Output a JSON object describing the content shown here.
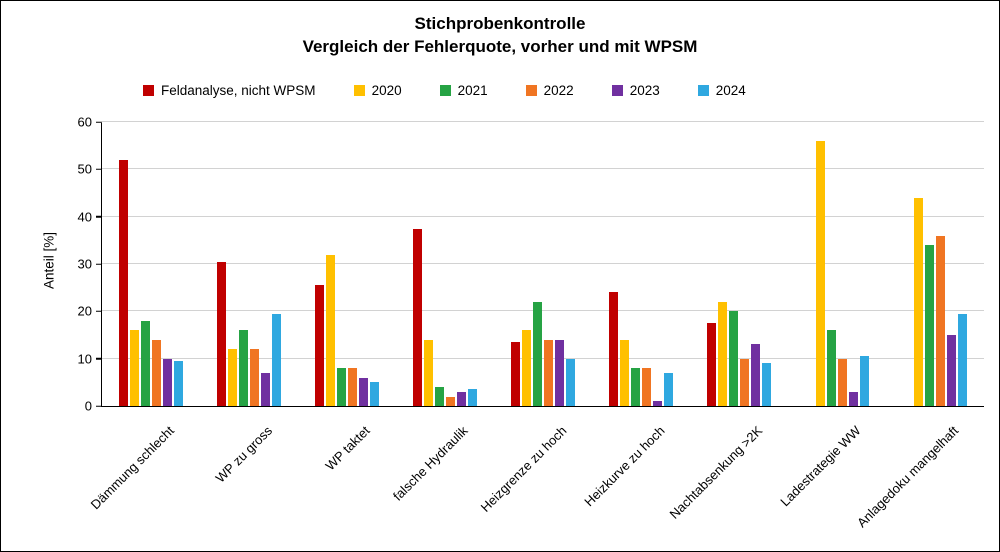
{
  "chart_data": {
    "type": "bar",
    "title": "Stichprobenkontrolle",
    "subtitle": "Vergleich der Fehlerquote, vorher und mit WPSM",
    "ylabel": "Anteil [%]",
    "xlabel": "",
    "ylim": [
      0,
      60
    ],
    "ytick_step": 10,
    "grid": "horizontal",
    "legend_position": "top",
    "background": "#ffffff",
    "gridline_color": "#D2D2D2",
    "categories": [
      "Dämmung schlecht",
      "WP zu gross",
      "WP taktet",
      "falsche Hydraulik",
      "Heizgrenze zu hoch",
      "Heizkurve zu hoch",
      "Nachtabsenkung >2K",
      "Ladestrategie WW",
      "Anlagedoku mangelhaft"
    ],
    "series": [
      {
        "name": "Feldanalyse, nicht WPSM",
        "color": "#C00000",
        "values": [
          52,
          30.5,
          25.5,
          37.5,
          13.5,
          24,
          17.5,
          0,
          0
        ]
      },
      {
        "name": "2020",
        "color": "#FFC000",
        "values": [
          16,
          12,
          32,
          14,
          16,
          14,
          22,
          56,
          44
        ]
      },
      {
        "name": "2021",
        "color": "#26A344",
        "values": [
          18,
          16,
          8,
          4,
          22,
          8,
          20,
          16,
          34
        ]
      },
      {
        "name": "2022",
        "color": "#F07522",
        "values": [
          14,
          12,
          8,
          2,
          14,
          8,
          10,
          10,
          36
        ]
      },
      {
        "name": "2023",
        "color": "#7030A0",
        "values": [
          10,
          7,
          6,
          3,
          14,
          1,
          13,
          3,
          15
        ]
      },
      {
        "name": "2024",
        "color": "#2FA8E0",
        "values": [
          9.5,
          19.5,
          5,
          3.5,
          10,
          7,
          9,
          10.5,
          19.5
        ]
      }
    ]
  }
}
